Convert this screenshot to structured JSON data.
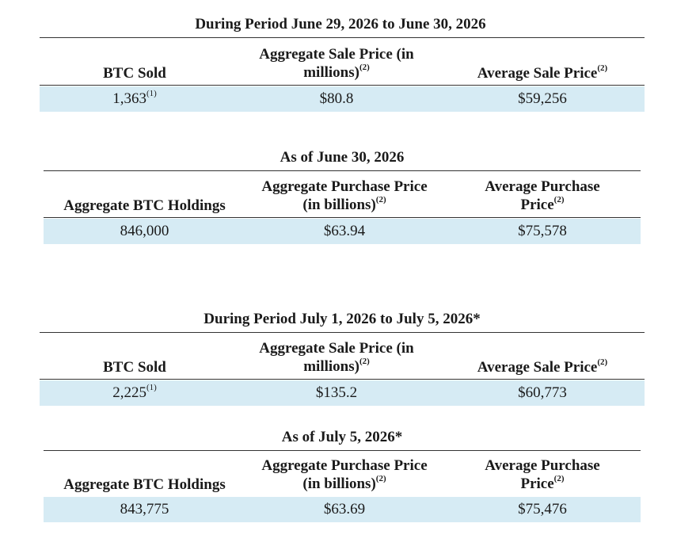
{
  "sections": [
    {
      "title": "During Period June 29, 2026 to June 30, 2026",
      "col1_header": "BTC Sold",
      "col2_header_line1": "Aggregate Sale Price (in",
      "col2_header_line2": "millions)",
      "col2_header_note": "(2)",
      "col3_header": "Average Sale Price",
      "col3_header_note": "(2)",
      "col1_value": "1,363",
      "col1_value_note": "(1)",
      "col2_value": "$80.8",
      "col3_value": "$59,256"
    },
    {
      "title": "As of June 30, 2026",
      "col1_header": "Aggregate BTC Holdings",
      "col2_header_line1": "Aggregate Purchase Price",
      "col2_header_line2": "(in billions)",
      "col2_header_note": "(2)",
      "col3_header_line1": "Average Purchase",
      "col3_header_line2": "Price",
      "col3_header_note": "(2)",
      "col1_value": "846,000",
      "col2_value": "$63.94",
      "col3_value": "$75,578"
    },
    {
      "title": "During Period July 1, 2026 to July 5, 2026*",
      "col1_header": "BTC Sold",
      "col2_header_line1": "Aggregate Sale Price (in",
      "col2_header_line2": "millions)",
      "col2_header_note": "(2)",
      "col3_header": "Average Sale Price",
      "col3_header_note": "(2)",
      "col1_value": "2,225",
      "col1_value_note": "(1)",
      "col2_value": "$135.2",
      "col3_value": "$60,773"
    },
    {
      "title": "As of July 5, 2026*",
      "col1_header": "Aggregate BTC Holdings",
      "col2_header_line1": "Aggregate Purchase Price",
      "col2_header_line2": "(in billions)",
      "col2_header_note": "(2)",
      "col3_header_line1": "Average Purchase",
      "col3_header_line2": "Price",
      "col3_header_note": "(2)",
      "col1_value": "843,775",
      "col2_value": "$63.69",
      "col3_value": "$75,476"
    }
  ]
}
